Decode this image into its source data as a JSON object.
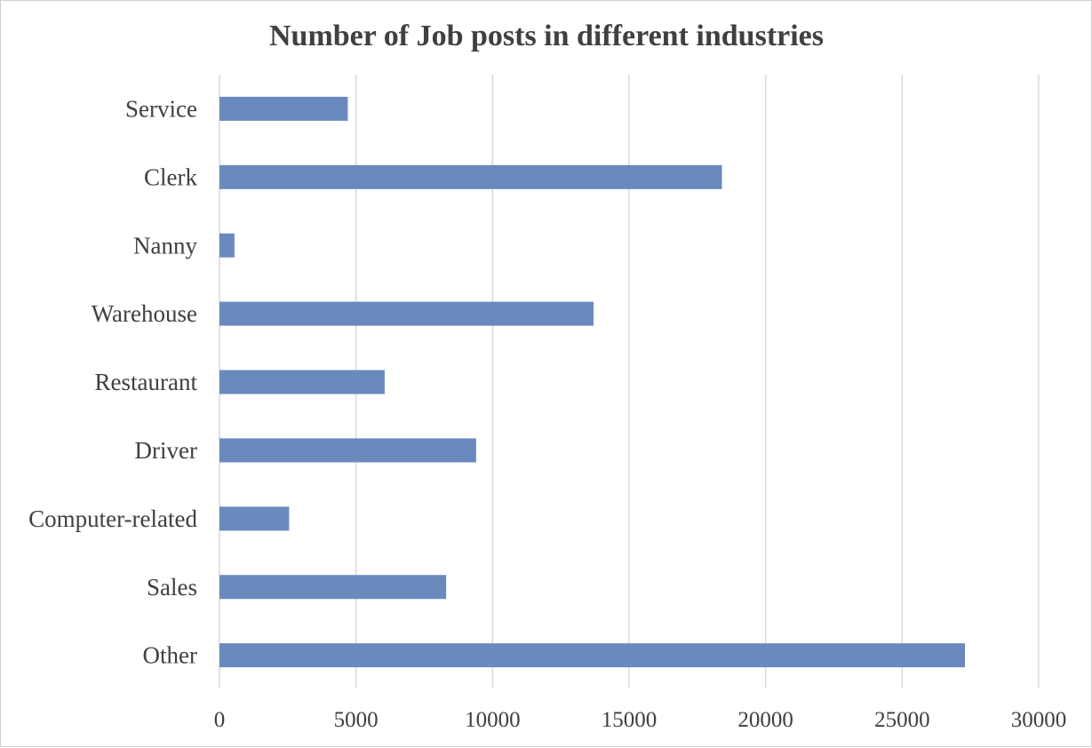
{
  "chart_data": {
    "type": "bar",
    "orientation": "horizontal",
    "title": "Number of Job posts in different industries",
    "xlabel": "",
    "ylabel": "",
    "categories": [
      "Service",
      "Clerk",
      "Nanny",
      "Warehouse",
      "Restaurant",
      "Driver",
      "Computer-related",
      "Sales",
      "Other"
    ],
    "values": [
      4700,
      18400,
      550,
      13700,
      6050,
      9400,
      2550,
      8300,
      27300
    ],
    "xlim": [
      0,
      30000
    ],
    "xticks": [
      0,
      5000,
      10000,
      15000,
      20000,
      25000,
      30000
    ],
    "xtick_labels": [
      "0",
      "5000",
      "10000",
      "15000",
      "20000",
      "25000",
      "30000"
    ],
    "grid": "vertical",
    "legend": "none",
    "colors": {
      "bar": "#6a8abe",
      "grid": "#d9d9d9",
      "text": "#404040"
    }
  }
}
